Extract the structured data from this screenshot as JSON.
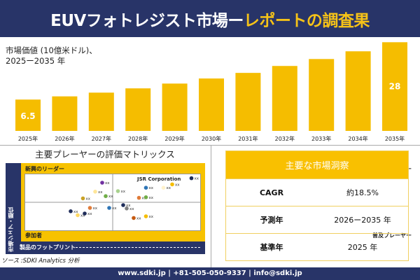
{
  "header": {
    "title_white": "EUVフォトレジスト市場ー",
    "title_yellow": "レポートの調査果"
  },
  "chart_data": {
    "type": "bar",
    "title_line1": "市場価値 (10億米ドル)、",
    "title_line2": "2025ー2035 年",
    "categories": [
      "2025年",
      "2026年",
      "2027年",
      "2028年",
      "2029年",
      "2030年",
      "2031年",
      "2032年",
      "2033年",
      "2034年",
      "2035年"
    ],
    "values": [
      6.5,
      7.7,
      9.1,
      10.7,
      12.5,
      14.4,
      16.5,
      19.1,
      21.7,
      24.6,
      28
    ],
    "data_labels": {
      "0": "6.5",
      "10": "28"
    },
    "bar_color": "#f5bd00"
  },
  "matrix": {
    "title": "主要プレーヤーの評価マトリックス",
    "quadrants": {
      "top_left": "新興のリーダー",
      "top_right": "スター",
      "bottom_left": "参加者",
      "bottom_right": "普及プレーヤー"
    },
    "x_axis": "製品のフットプリント",
    "y_axis": "市場シェア・順位",
    "highlight_label": "JSR Corporation",
    "point_label": "xx",
    "points": [
      {
        "fp": 44,
        "share": 85,
        "color": "#7030a0"
      },
      {
        "fp": 40,
        "share": 69,
        "color": "#ffe699"
      },
      {
        "fp": 33,
        "share": 57,
        "color": "#c9a227"
      },
      {
        "fp": 46,
        "share": 61,
        "color": "#70ad47"
      },
      {
        "fp": 26,
        "share": 34,
        "color": "#1f2d5a"
      },
      {
        "fp": 37,
        "share": 40,
        "color": "#e07b39"
      },
      {
        "fp": 48,
        "share": 40,
        "color": "#2e75b6"
      },
      {
        "fp": 30,
        "share": 27,
        "color": "#ffd966"
      },
      {
        "fp": 34,
        "share": 30,
        "color": "#1f2d5a"
      },
      {
        "fp": 56,
        "share": 45,
        "color": "#1f2d5a"
      },
      {
        "fp": 58,
        "share": 39,
        "color": "#808080"
      },
      {
        "fp": 62,
        "share": 22,
        "color": "#c55a11"
      },
      {
        "fp": 69,
        "share": 25,
        "color": "#f5bd00"
      },
      {
        "fp": 53,
        "share": 70,
        "color": "#a9d18e"
      },
      {
        "fp": 65,
        "share": 58,
        "color": "#e07b39"
      },
      {
        "fp": 69,
        "share": 59,
        "color": "#70ad47"
      },
      {
        "fp": 69,
        "share": 76,
        "color": "#2e75b6"
      },
      {
        "fp": 79,
        "share": 76,
        "color": "#fff2cc"
      },
      {
        "fp": 84,
        "share": 82,
        "color": "#f5bd00"
      },
      {
        "fp": 95,
        "share": 93,
        "color": "#1f2d5a"
      }
    ]
  },
  "source": "ソース :SDKI Analytics 分析",
  "insights": {
    "title": "主要な市場洞察",
    "rows": [
      {
        "k": "CAGR",
        "v": "約18.5%"
      },
      {
        "k": "予測年",
        "v": "2026ー2035 年"
      },
      {
        "k": "基準年",
        "v": "2025 年"
      }
    ]
  },
  "footer": "www.sdki.jp | +81-505-050-9337 | info@sdki.jp"
}
